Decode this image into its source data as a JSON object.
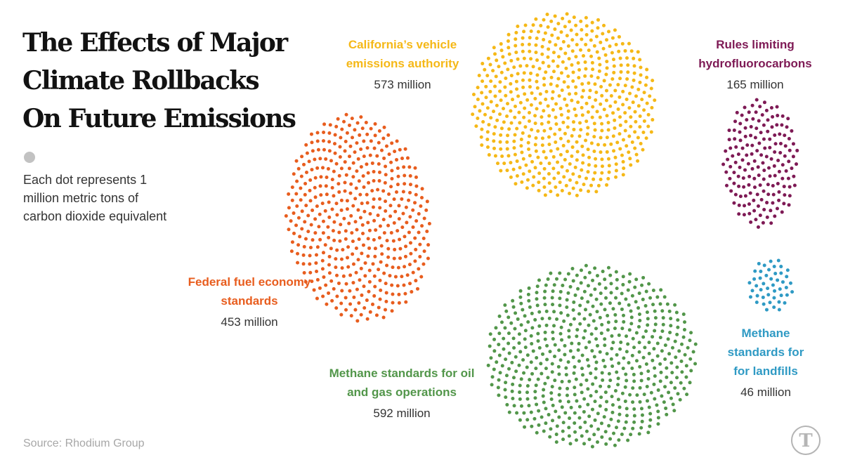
{
  "title": "The Effects of Major Climate Rollbacks On Future Emissions",
  "legend": {
    "text": "Each dot represents 1 million metric tons of carbon dioxide equivalent",
    "dot_color": "#c2c2c2"
  },
  "source": "Source: Rhodium Group",
  "logo": {
    "icon": "nyt-t-logo",
    "text": "T"
  },
  "chart_data": {
    "type": "dot-cluster",
    "title": "The Effects of Major Climate Rollbacks On Future Emissions",
    "unit": "million metric tons of carbon dioxide equivalent",
    "dot_value": 1,
    "series": [
      {
        "id": "fuel",
        "name": "Federal fuel economy standards",
        "value": 453,
        "value_label": "453 million",
        "color": "#e85d1e"
      },
      {
        "id": "california",
        "name": "California’s vehicle emissions authority",
        "value": 573,
        "value_label": "573 million",
        "color": "#f5b817"
      },
      {
        "id": "hfc",
        "name": "Rules limiting hydrofluorocarbons",
        "value": 165,
        "value_label": "165 million",
        "color": "#7e1a55"
      },
      {
        "id": "methane_og",
        "name": "Methane standards for oil and gas operations",
        "value": 592,
        "value_label": "592 million",
        "color": "#52964a"
      },
      {
        "id": "landfill",
        "name": "Methane standards for for landfills",
        "value": 46,
        "value_label": "46 million",
        "color": "#2f9ac4"
      }
    ]
  }
}
